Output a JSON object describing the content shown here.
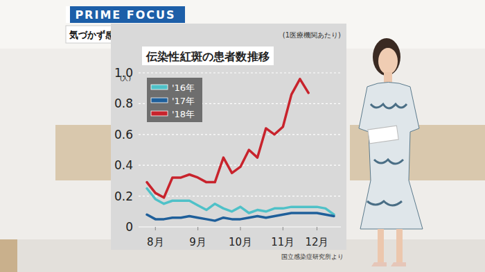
{
  "header": {
    "program": "PRIME FOCUS",
    "headline": "気づかず感染“リンゴ病”に注意"
  },
  "chart_data": {
    "type": "line",
    "title": "伝染性紅斑の患者数推移",
    "subtitle": "(1医療機関あたり)",
    "y_label": "(人)",
    "source": "国立感染症研究所より",
    "categories": [
      null,
      "8月",
      null,
      null,
      null,
      null,
      "9月",
      null,
      null,
      null,
      null,
      "10月",
      null,
      null,
      null,
      null,
      "11月",
      null,
      null,
      null,
      "12月",
      null,
      null
    ],
    "series": [
      {
        "name": "'16年",
        "color": "#4fc1c8",
        "values": [
          0.25,
          0.18,
          0.15,
          0.17,
          0.17,
          0.17,
          0.14,
          0.11,
          0.15,
          0.12,
          0.1,
          0.13,
          0.09,
          0.11,
          0.1,
          0.12,
          0.12,
          0.13,
          0.13,
          0.13,
          0.13,
          0.12,
          0.08
        ]
      },
      {
        "name": "'17年",
        "color": "#1f5f9a",
        "values": [
          0.08,
          0.05,
          0.05,
          0.06,
          0.06,
          0.07,
          0.06,
          0.05,
          0.04,
          0.06,
          0.05,
          0.05,
          0.06,
          0.07,
          0.06,
          0.07,
          0.08,
          0.09,
          0.09,
          0.09,
          0.09,
          0.08,
          0.07
        ]
      },
      {
        "name": "'18年",
        "color": "#c8232c",
        "values": [
          0.29,
          0.22,
          0.19,
          0.32,
          0.32,
          0.34,
          0.32,
          0.29,
          0.29,
          0.45,
          0.35,
          0.39,
          0.5,
          0.45,
          0.64,
          0.6,
          0.65,
          0.86,
          0.96,
          0.87,
          null,
          null,
          null
        ]
      }
    ],
    "ylim": [
      0,
      1
    ],
    "yticks": [
      0,
      0.2,
      0.4,
      0.6,
      0.8,
      {
        "value": 1,
        "label": "1.0"
      }
    ],
    "grid": true,
    "legend": "top-left"
  }
}
